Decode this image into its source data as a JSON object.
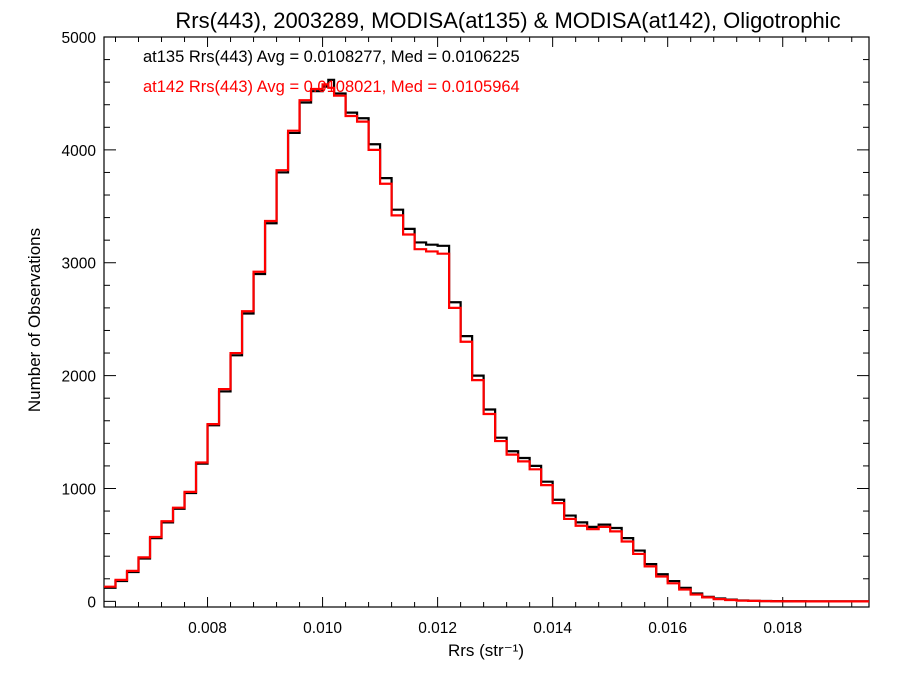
{
  "chart_data": {
    "type": "line",
    "title": "Rrs(443), 2003289, MODISA(at135) & MODISA(at142), Oligotrophic",
    "xlabel": "Rrs (str⁻¹)",
    "ylabel": "Number of Observations",
    "xlim": [
      0.0062,
      0.0195
    ],
    "ylim": [
      -50,
      5000
    ],
    "x_ticks": [
      "0.008",
      "0.010",
      "0.012",
      "0.014",
      "0.016",
      "0.018"
    ],
    "y_ticks": [
      "0",
      "1000",
      "2000",
      "3000",
      "4000",
      "5000"
    ],
    "legend": {
      "placement": "top-left",
      "entries": [
        "at135 Rrs(443) Avg = 0.0108277, Med = 0.0106225",
        "at142 Rrs(443) Avg = 0.0108021, Med = 0.0105964"
      ]
    },
    "series": [
      {
        "color": "#000000",
        "x": [
          0.0062,
          0.0064,
          0.0066,
          0.0068,
          0.007,
          0.0072,
          0.0074,
          0.0076,
          0.0078,
          0.008,
          0.0082,
          0.0084,
          0.0086,
          0.0088,
          0.009,
          0.0092,
          0.0094,
          0.0096,
          0.0098,
          0.01,
          0.0101,
          0.0102,
          0.0104,
          0.0106,
          0.0108,
          0.011,
          0.0112,
          0.0114,
          0.0116,
          0.0118,
          0.012,
          0.0122,
          0.0124,
          0.0126,
          0.0128,
          0.013,
          0.0132,
          0.0134,
          0.0136,
          0.0138,
          0.014,
          0.0142,
          0.0144,
          0.0146,
          0.0148,
          0.015,
          0.0152,
          0.0154,
          0.0156,
          0.0158,
          0.016,
          0.0162,
          0.0164,
          0.0166,
          0.0168,
          0.017,
          0.0172,
          0.0174,
          0.0176,
          0.0178,
          0.018,
          0.0182,
          0.0184,
          0.0186,
          0.0188,
          0.019,
          0.0192,
          0.0195
        ],
        "values": [
          120,
          180,
          260,
          380,
          560,
          700,
          820,
          960,
          1220,
          1560,
          1860,
          2180,
          2550,
          2900,
          3350,
          3800,
          4150,
          4420,
          4520,
          4560,
          4620,
          4500,
          4330,
          4280,
          4050,
          3750,
          3470,
          3300,
          3180,
          3160,
          3150,
          2650,
          2350,
          2000,
          1700,
          1450,
          1330,
          1270,
          1200,
          1060,
          900,
          760,
          700,
          660,
          680,
          650,
          560,
          450,
          330,
          240,
          180,
          120,
          70,
          40,
          25,
          15,
          8,
          5,
          3,
          2,
          1,
          1,
          0,
          0,
          0,
          0,
          0,
          0
        ]
      },
      {
        "color": "#ff0000",
        "x": [
          0.0062,
          0.0064,
          0.0066,
          0.0068,
          0.007,
          0.0072,
          0.0074,
          0.0076,
          0.0078,
          0.008,
          0.0082,
          0.0084,
          0.0086,
          0.0088,
          0.009,
          0.0092,
          0.0094,
          0.0096,
          0.0098,
          0.01,
          0.0101,
          0.0102,
          0.0104,
          0.0106,
          0.0108,
          0.011,
          0.0112,
          0.0114,
          0.0116,
          0.0118,
          0.012,
          0.0122,
          0.0124,
          0.0126,
          0.0128,
          0.013,
          0.0132,
          0.0134,
          0.0136,
          0.0138,
          0.014,
          0.0142,
          0.0144,
          0.0146,
          0.0148,
          0.015,
          0.0152,
          0.0154,
          0.0156,
          0.0158,
          0.016,
          0.0162,
          0.0164,
          0.0166,
          0.0168,
          0.017,
          0.0172,
          0.0174,
          0.0176,
          0.0178,
          0.018,
          0.0182,
          0.0184,
          0.0186,
          0.0188,
          0.019,
          0.0192,
          0.0195
        ],
        "values": [
          130,
          190,
          270,
          390,
          570,
          710,
          830,
          970,
          1230,
          1570,
          1880,
          2200,
          2570,
          2920,
          3370,
          3820,
          4170,
          4440,
          4540,
          4580,
          4550,
          4480,
          4300,
          4250,
          4000,
          3700,
          3420,
          3250,
          3120,
          3100,
          3080,
          2600,
          2300,
          1960,
          1660,
          1420,
          1300,
          1240,
          1170,
          1030,
          870,
          730,
          670,
          640,
          660,
          620,
          530,
          420,
          310,
          220,
          160,
          105,
          60,
          35,
          20,
          12,
          6,
          4,
          2,
          1,
          1,
          0,
          0,
          0,
          0,
          0,
          0,
          0
        ]
      }
    ]
  }
}
